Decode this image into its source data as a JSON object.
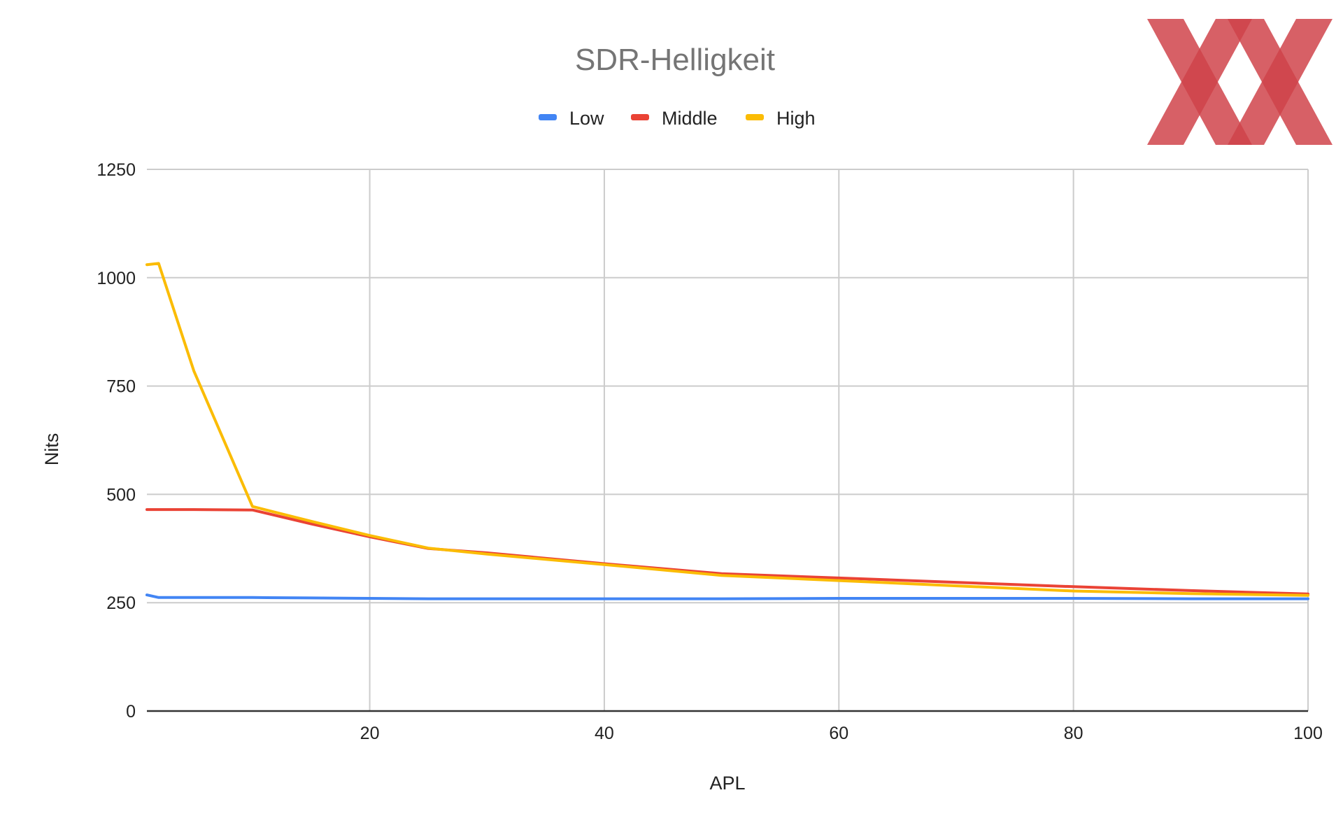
{
  "colors": {
    "low": "#4285f4",
    "middle": "#ea4335",
    "high": "#fbbc04",
    "logo": "#c8232c"
  },
  "chart_data": {
    "type": "line",
    "title": "SDR-Helligkeit",
    "xlabel": "APL",
    "ylabel": "Nits",
    "xlim": [
      1,
      100
    ],
    "ylim": [
      0,
      1250
    ],
    "x_ticks": [
      20,
      40,
      60,
      80,
      100
    ],
    "y_ticks": [
      0,
      250,
      500,
      750,
      1000,
      1250
    ],
    "grid": true,
    "legend_position": "top",
    "series": [
      {
        "name": "Low",
        "color": "#4285f4",
        "x": [
          1,
          2,
          5,
          10,
          15,
          20,
          25,
          30,
          40,
          50,
          60,
          70,
          80,
          90,
          100
        ],
        "y": [
          268,
          262,
          262,
          262,
          261,
          260,
          259,
          259,
          259,
          259,
          260,
          260,
          260,
          259,
          259
        ]
      },
      {
        "name": "Middle",
        "color": "#ea4335",
        "x": [
          1,
          2,
          5,
          10,
          15,
          20,
          25,
          30,
          40,
          50,
          60,
          70,
          80,
          90,
          100
        ],
        "y": [
          465,
          465,
          465,
          464,
          432,
          402,
          375,
          365,
          340,
          317,
          307,
          297,
          287,
          278,
          270
        ]
      },
      {
        "name": "High",
        "color": "#fbbc04",
        "x": [
          1,
          2,
          5,
          10,
          15,
          20,
          25,
          30,
          40,
          50,
          60,
          70,
          80,
          90,
          100
        ],
        "y": [
          1030,
          1033,
          785,
          472,
          438,
          405,
          376,
          362,
          338,
          313,
          301,
          289,
          277,
          271,
          267
        ]
      }
    ]
  }
}
